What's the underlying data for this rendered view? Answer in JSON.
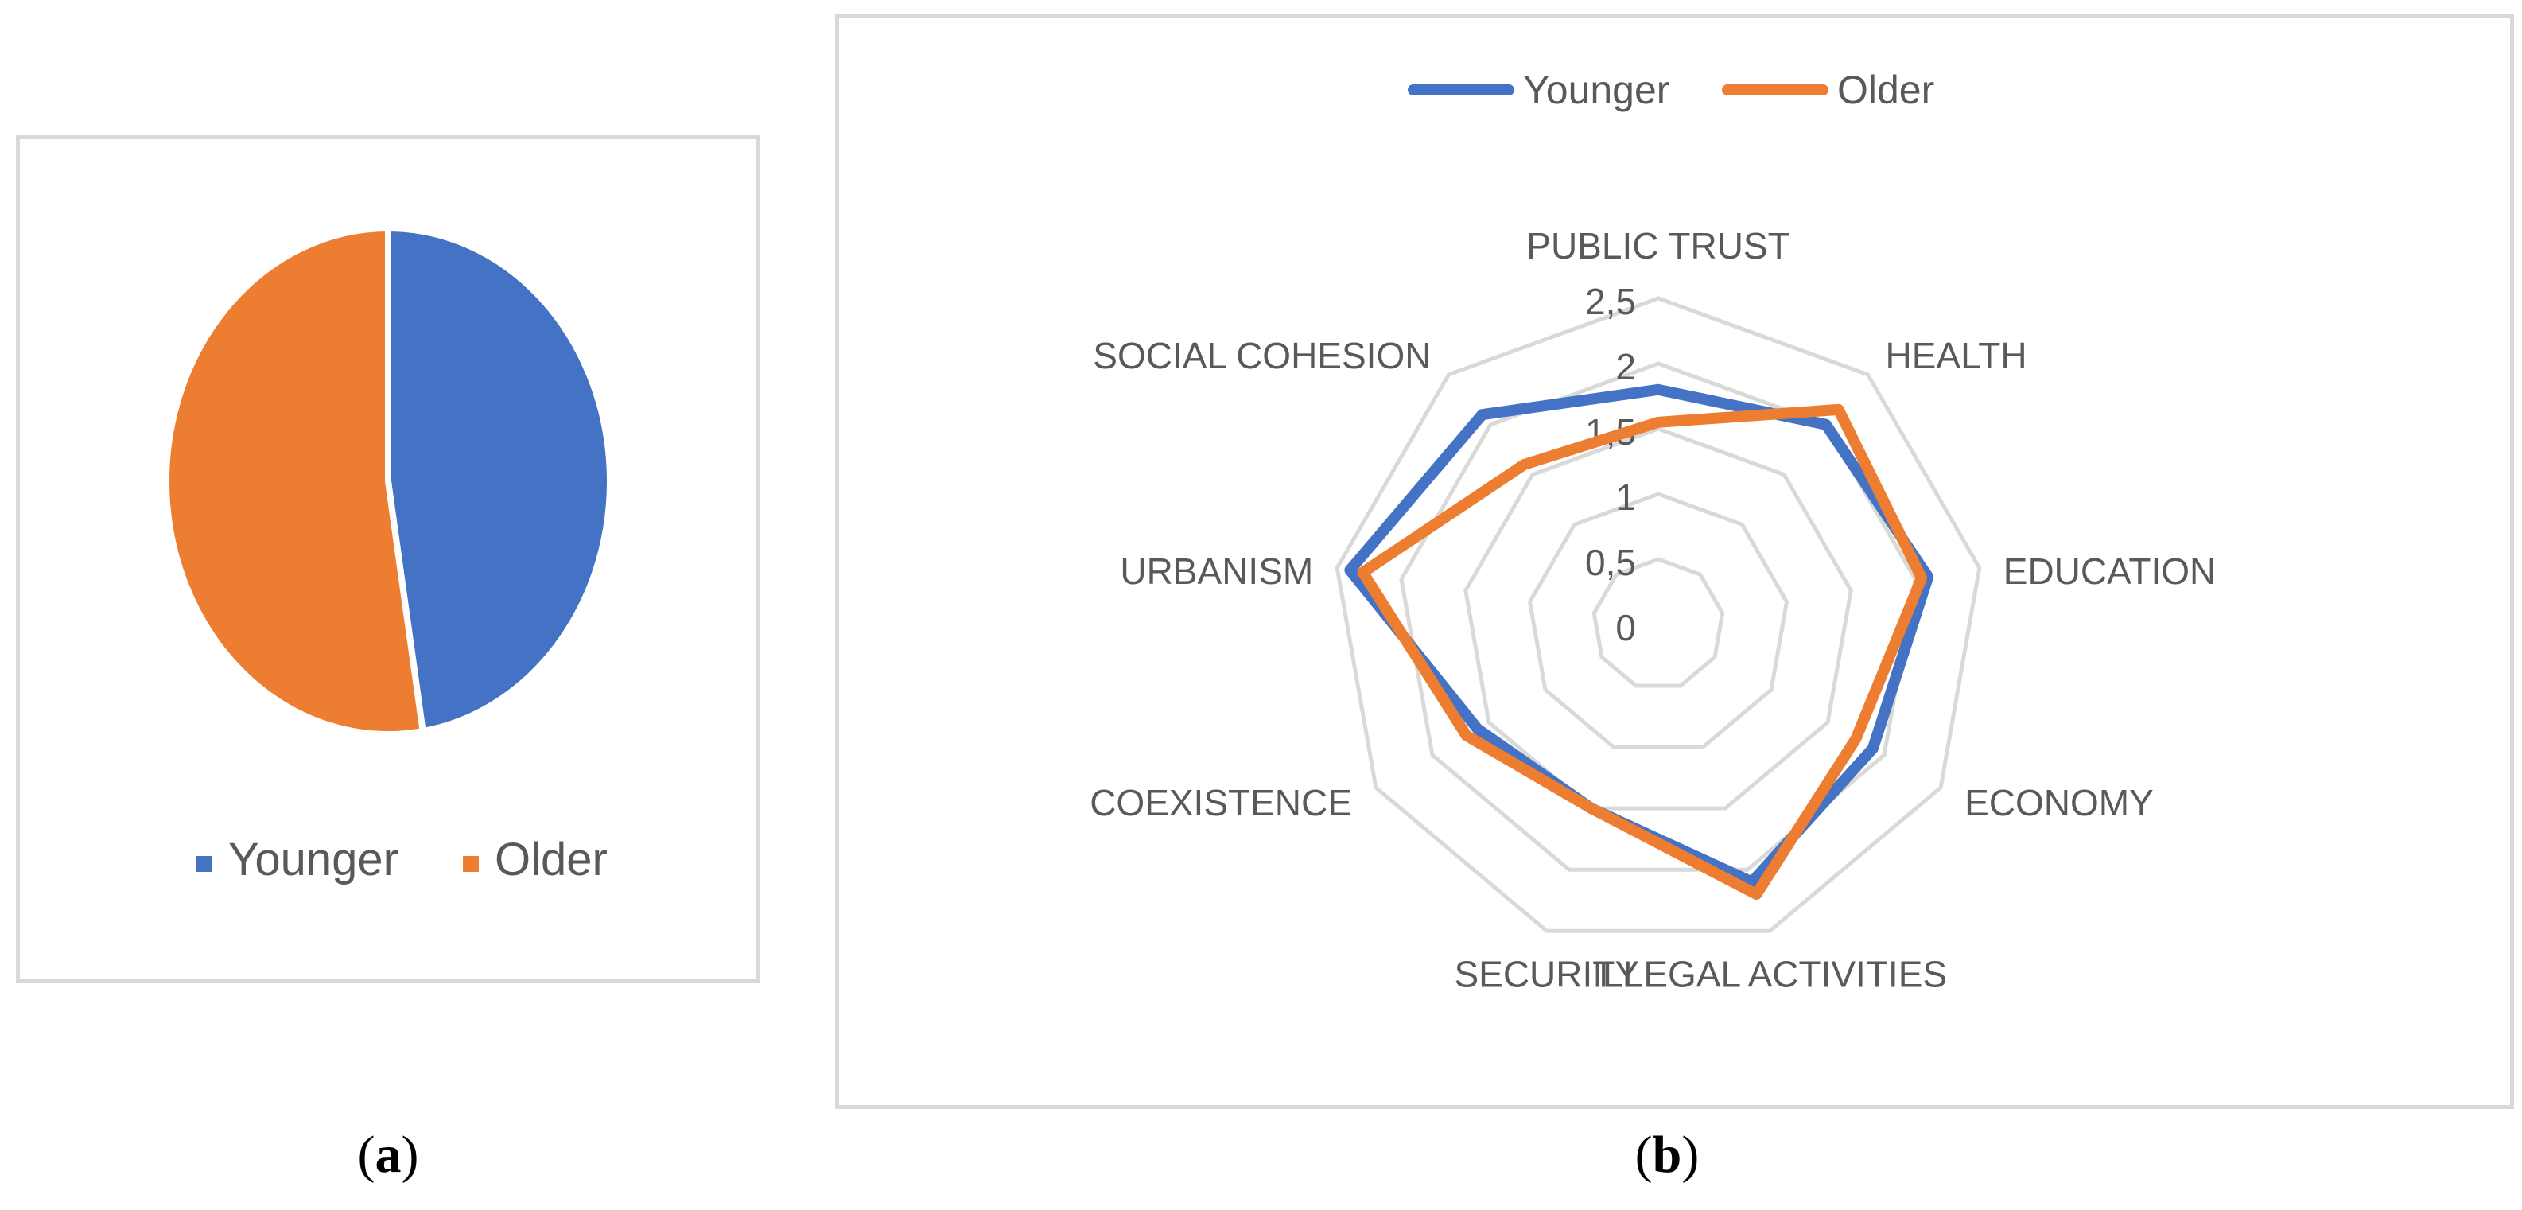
{
  "captions": {
    "a": "a",
    "b": "b"
  },
  "colors": {
    "younger": "#4472c4",
    "older": "#ed7d31",
    "grid": "#d9d9d9",
    "text": "#595959"
  },
  "chart_data": [
    {
      "type": "pie",
      "slices": [
        {
          "name": "Younger",
          "value": 47.5,
          "color": "#4472c4"
        },
        {
          "name": "Older",
          "value": 52.5,
          "color": "#ed7d31"
        }
      ],
      "legend": {
        "position": "bottom",
        "entries": [
          "Younger",
          "Older"
        ]
      }
    },
    {
      "type": "radar",
      "categories": [
        "PUBLIC TRUST",
        "HEALTH",
        "EDUCATION",
        "ECONOMY",
        "ILLEGAL ACTIVITIES",
        "SECURITY",
        "COEXISTENCE",
        "URBANISM",
        "SOCIAL COHESION"
      ],
      "series": [
        {
          "name": "Younger",
          "color": "#4472c4",
          "values": [
            1.8,
            2.0,
            2.1,
            1.9,
            2.1,
            1.5,
            1.6,
            2.4,
            2.1
          ]
        },
        {
          "name": "Older",
          "color": "#ed7d31",
          "values": [
            1.55,
            2.15,
            2.05,
            1.75,
            2.2,
            1.5,
            1.7,
            2.3,
            1.6
          ]
        }
      ],
      "rlim": [
        0,
        2.5
      ],
      "ticks": [
        "0",
        "0,5",
        "1",
        "1,5",
        "2",
        "2,5"
      ],
      "grid": true,
      "legend": {
        "position": "top",
        "entries": [
          "Younger",
          "Older"
        ]
      }
    }
  ]
}
